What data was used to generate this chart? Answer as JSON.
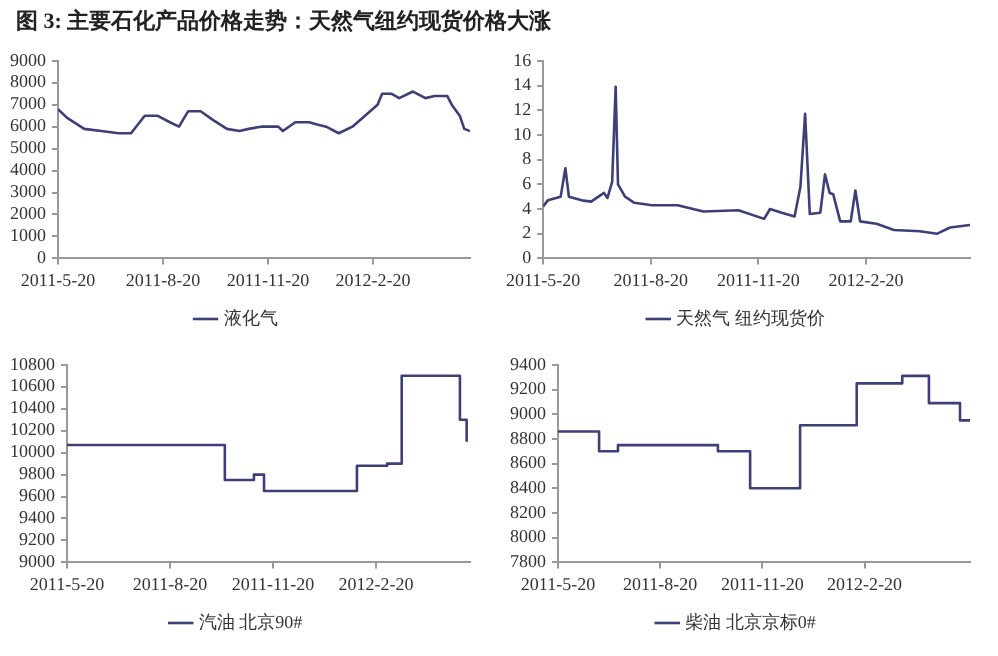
{
  "chart_data": [
    {
      "type": "line",
      "title": "图 3: 主要石化产品价格走势：天然气纽约现货价格大涨",
      "xlim": [
        "2011-05-20",
        "2012-05-15"
      ],
      "xticks": [
        {
          "value": "2011-05-20",
          "label": "2011-5-20"
        },
        {
          "value": "2011-08-20",
          "label": "2011-8-20"
        },
        {
          "value": "2011-11-20",
          "label": "2011-11-20"
        },
        {
          "value": "2012-02-20",
          "label": "2012-2-20"
        }
      ],
      "ylim": [
        0,
        9000
      ],
      "yticks": [
        0,
        1000,
        2000,
        3000,
        4000,
        5000,
        6000,
        7000,
        8000,
        9000
      ],
      "grid": false,
      "legend": "bottom",
      "marker": "none",
      "x": [
        "2011-05-20",
        "2011-05-28",
        "2011-06-12",
        "2011-06-27",
        "2011-07-12",
        "2011-07-23",
        "2011-08-04",
        "2011-08-15",
        "2011-08-26",
        "2011-09-03",
        "2011-09-11",
        "2011-09-22",
        "2011-10-03",
        "2011-10-15",
        "2011-10-26",
        "2011-11-03",
        "2011-11-14",
        "2011-11-29",
        "2011-12-03",
        "2011-12-14",
        "2011-12-26",
        "2012-01-02",
        "2012-01-10",
        "2012-01-21",
        "2012-02-02",
        "2012-02-13",
        "2012-02-24",
        "2012-02-28",
        "2012-03-07",
        "2012-03-14",
        "2012-03-26",
        "2012-04-06",
        "2012-04-14",
        "2012-04-25",
        "2012-04-29",
        "2012-05-06",
        "2012-05-10",
        "2012-05-15"
      ],
      "series": [
        {
          "name": "液化气",
          "color": "#3c3f78",
          "values": [
            6800,
            6400,
            5900,
            5800,
            5700,
            5700,
            6500,
            6500,
            6200,
            6000,
            6700,
            6700,
            6300,
            5900,
            5800,
            5900,
            6000,
            6000,
            5800,
            6200,
            6200,
            6100,
            6000,
            5700,
            6000,
            6500,
            7000,
            7500,
            7500,
            7300,
            7600,
            7300,
            7400,
            7400,
            7000,
            6500,
            5900,
            5800
          ]
        }
      ]
    },
    {
      "type": "line",
      "xlim": [
        "2011-05-20",
        "2012-05-19"
      ],
      "xticks": [
        {
          "value": "2011-05-20",
          "label": "2011-5-20"
        },
        {
          "value": "2011-08-20",
          "label": "2011-8-20"
        },
        {
          "value": "2011-11-20",
          "label": "2011-11-20"
        },
        {
          "value": "2012-02-20",
          "label": "2012-2-20"
        }
      ],
      "ylim": [
        0,
        16
      ],
      "yticks": [
        0,
        2,
        4,
        6,
        8,
        10,
        12,
        14,
        16
      ],
      "grid": false,
      "legend": "bottom",
      "marker": "none",
      "x": [
        "2011-05-20",
        "2011-05-24",
        "2011-06-04",
        "2011-06-08",
        "2011-06-11",
        "2011-06-22",
        "2011-06-30",
        "2011-07-11",
        "2011-07-14",
        "2011-07-18",
        "2011-07-21",
        "2011-07-23",
        "2011-07-29",
        "2011-08-06",
        "2011-08-21",
        "2011-09-12",
        "2011-10-04",
        "2011-11-03",
        "2011-11-25",
        "2011-11-30",
        "2011-12-10",
        "2011-12-21",
        "2011-12-26",
        "2011-12-30",
        "2012-01-03",
        "2012-01-12",
        "2012-01-16",
        "2012-01-20",
        "2012-01-23",
        "2012-01-29",
        "2012-02-07",
        "2012-02-11",
        "2012-02-15",
        "2012-02-29",
        "2012-03-15",
        "2012-04-06",
        "2012-04-21",
        "2012-05-02",
        "2012-05-19"
      ],
      "series": [
        {
          "name": "天然气 纽约现货价",
          "color": "#3c3f78",
          "values": [
            4.2,
            4.7,
            5.0,
            7.3,
            5.0,
            4.7,
            4.6,
            5.3,
            4.9,
            6.2,
            13.9,
            6.0,
            5.0,
            4.5,
            4.3,
            4.3,
            3.8,
            3.9,
            3.2,
            4.0,
            3.7,
            3.4,
            5.8,
            11.7,
            3.6,
            3.7,
            6.8,
            5.3,
            5.2,
            3.0,
            3.0,
            5.5,
            3.0,
            2.8,
            2.3,
            2.2,
            2.0,
            2.5,
            2.7
          ]
        }
      ]
    },
    {
      "type": "step",
      "xlim": [
        "2011-05-20",
        "2012-05-14"
      ],
      "xticks": [
        {
          "value": "2011-05-20",
          "label": "2011-5-20"
        },
        {
          "value": "2011-08-20",
          "label": "2011-8-20"
        },
        {
          "value": "2011-11-20",
          "label": "2011-11-20"
        },
        {
          "value": "2012-02-20",
          "label": "2012-2-20"
        }
      ],
      "ylim": [
        9000,
        10800
      ],
      "yticks": [
        9000,
        9200,
        9400,
        9600,
        9800,
        10000,
        10200,
        10400,
        10600,
        10800
      ],
      "grid": false,
      "legend": "bottom",
      "marker": "none",
      "x": [
        "2011-05-20",
        "2011-10-08",
        "2011-11-03",
        "2011-11-12",
        "2012-02-03",
        "2012-03-01",
        "2012-03-14",
        "2012-05-05",
        "2012-05-11"
      ],
      "series": [
        {
          "name": "汽油 北京90#",
          "color": "#3c3f78",
          "values": [
            10070,
            9750,
            9800,
            9650,
            9880,
            9900,
            10700,
            10300,
            10100
          ]
        }
      ]
    },
    {
      "type": "step",
      "xlim": [
        "2011-05-20",
        "2012-05-25"
      ],
      "xticks": [
        {
          "value": "2011-05-20",
          "label": "2011-5-20"
        },
        {
          "value": "2011-08-20",
          "label": "2011-8-20"
        },
        {
          "value": "2011-11-20",
          "label": "2011-11-20"
        },
        {
          "value": "2012-02-20",
          "label": "2012-2-20"
        }
      ],
      "ylim": [
        7800,
        9400
      ],
      "yticks": [
        7800,
        8000,
        8200,
        8400,
        8600,
        8800,
        9000,
        9200,
        9400
      ],
      "grid": false,
      "legend": "bottom",
      "marker": "none",
      "x": [
        "2011-05-20",
        "2011-06-26",
        "2011-07-13",
        "2011-10-11",
        "2011-11-09",
        "2011-12-24",
        "2012-02-13",
        "2012-03-25",
        "2012-04-18",
        "2012-05-16",
        "2012-05-25"
      ],
      "series": [
        {
          "name": "柴油 北京京标0#",
          "color": "#3c3f78",
          "values": [
            8860,
            8700,
            8750,
            8700,
            8400,
            8910,
            9250,
            9310,
            9090,
            8950,
            8950
          ]
        }
      ]
    }
  ]
}
